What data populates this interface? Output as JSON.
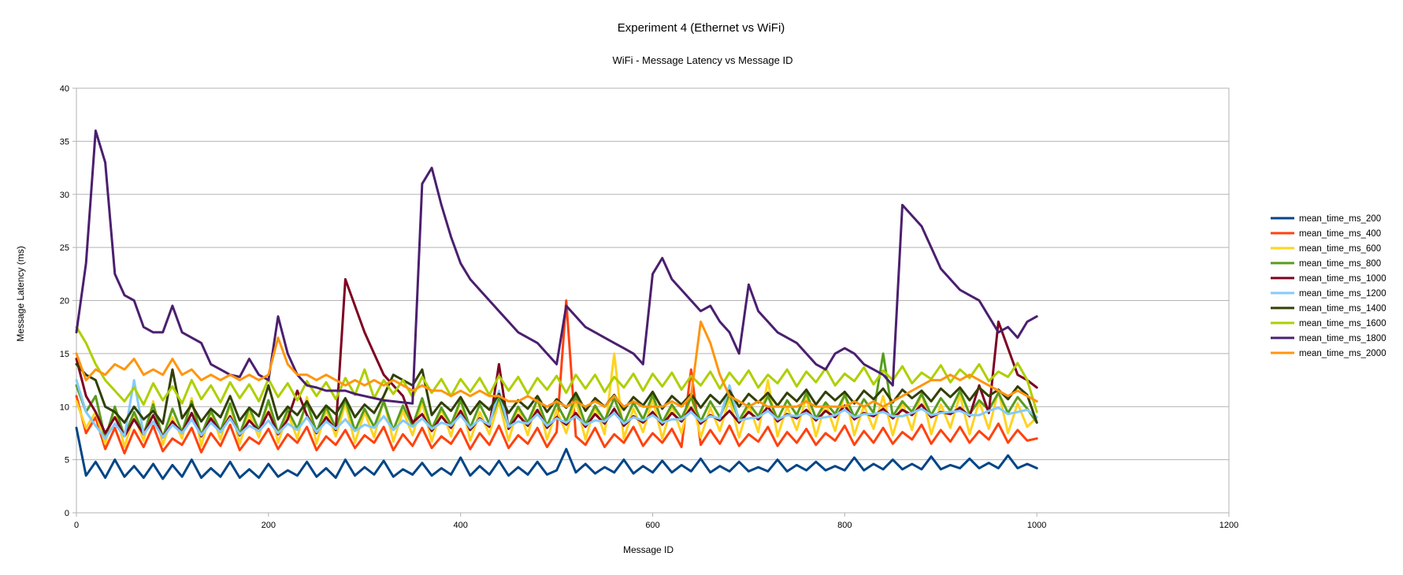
{
  "chart_data": {
    "type": "line",
    "title": "Experiment 4 (Ethernet vs WiFi)",
    "subtitle": "WiFi - Message Latency vs Message ID",
    "xlabel": "Message ID",
    "ylabel": "Message Latency (ms)",
    "xlim": [
      0,
      1200
    ],
    "ylim": [
      0,
      40
    ],
    "xticks": [
      0,
      200,
      400,
      600,
      800,
      1000,
      1200
    ],
    "yticks": [
      0,
      5,
      10,
      15,
      20,
      25,
      30,
      35,
      40
    ],
    "grid": "horizontal",
    "legend_position": "right",
    "x": [
      0,
      10,
      20,
      30,
      40,
      50,
      60,
      70,
      80,
      90,
      100,
      110,
      120,
      130,
      140,
      150,
      160,
      170,
      180,
      190,
      200,
      210,
      220,
      230,
      240,
      250,
      260,
      270,
      280,
      290,
      300,
      310,
      320,
      330,
      340,
      350,
      360,
      370,
      380,
      390,
      400,
      410,
      420,
      430,
      440,
      450,
      460,
      470,
      480,
      490,
      500,
      510,
      520,
      530,
      540,
      550,
      560,
      570,
      580,
      590,
      600,
      610,
      620,
      630,
      640,
      650,
      660,
      670,
      680,
      690,
      700,
      710,
      720,
      730,
      740,
      750,
      760,
      770,
      780,
      790,
      800,
      810,
      820,
      830,
      840,
      850,
      860,
      870,
      880,
      890,
      900,
      910,
      920,
      930,
      940,
      950,
      960,
      970,
      980,
      990,
      1000
    ],
    "series": [
      {
        "name": "mean_time_ms_200",
        "color": "#004586",
        "values": [
          8.0,
          3.5,
          4.8,
          3.3,
          5.0,
          3.4,
          4.4,
          3.3,
          4.6,
          3.2,
          4.5,
          3.4,
          5.0,
          3.3,
          4.2,
          3.4,
          4.8,
          3.3,
          4.1,
          3.3,
          4.6,
          3.4,
          4.0,
          3.5,
          4.8,
          3.4,
          4.2,
          3.3,
          5.0,
          3.5,
          4.3,
          3.6,
          4.9,
          3.4,
          4.1,
          3.6,
          4.7,
          3.5,
          4.2,
          3.6,
          5.2,
          3.5,
          4.4,
          3.6,
          4.9,
          3.5,
          4.3,
          3.6,
          4.8,
          3.6,
          4.0,
          6.0,
          3.8,
          4.6,
          3.7,
          4.3,
          3.8,
          5.0,
          3.7,
          4.4,
          3.8,
          4.9,
          3.8,
          4.5,
          3.9,
          5.1,
          3.8,
          4.4,
          3.9,
          4.8,
          3.9,
          4.3,
          3.9,
          5.0,
          3.9,
          4.5,
          4.0,
          4.8,
          4.0,
          4.4,
          4.0,
          5.2,
          4.0,
          4.6,
          4.1,
          5.0,
          4.1,
          4.6,
          4.1,
          5.3,
          4.1,
          4.5,
          4.2,
          5.1,
          4.2,
          4.7,
          4.2,
          5.4,
          4.2,
          4.6,
          4.2
        ]
      },
      {
        "name": "mean_time_ms_400",
        "color": "#ff420e",
        "values": [
          11.0,
          7.5,
          9.0,
          6.0,
          8.0,
          5.6,
          7.8,
          6.2,
          8.2,
          5.8,
          7.0,
          6.4,
          8.0,
          5.7,
          7.5,
          6.3,
          8.3,
          5.9,
          7.1,
          6.5,
          7.9,
          6.0,
          7.4,
          6.6,
          8.1,
          5.9,
          7.2,
          6.4,
          7.8,
          6.1,
          7.3,
          6.6,
          8.1,
          5.9,
          7.4,
          6.3,
          8.0,
          6.1,
          7.2,
          6.5,
          7.9,
          6.0,
          7.5,
          6.4,
          8.2,
          6.1,
          7.3,
          6.5,
          8.0,
          6.2,
          7.6,
          20.0,
          7.2,
          6.4,
          8.0,
          6.2,
          7.4,
          6.6,
          8.1,
          6.3,
          7.5,
          6.6,
          7.9,
          6.2,
          13.5,
          6.4,
          7.8,
          6.5,
          8.2,
          6.3,
          7.4,
          6.7,
          8.1,
          6.3,
          7.6,
          6.6,
          7.9,
          6.4,
          7.5,
          6.8,
          8.2,
          6.4,
          7.7,
          6.6,
          8.0,
          6.5,
          7.6,
          6.9,
          8.3,
          6.5,
          7.8,
          6.7,
          8.1,
          6.6,
          7.7,
          6.9,
          8.4,
          6.6,
          7.8,
          6.8,
          7.0
        ]
      },
      {
        "name": "mean_time_ms_600",
        "color": "#ffd320",
        "values": [
          10.5,
          8.0,
          9.5,
          6.5,
          10.0,
          6.2,
          9.2,
          6.8,
          10.5,
          6.4,
          9.0,
          7.0,
          10.8,
          6.3,
          9.6,
          6.9,
          10.2,
          6.5,
          9.3,
          7.1,
          10.6,
          6.6,
          9.4,
          7.0,
          10.9,
          6.5,
          9.7,
          7.2,
          10.3,
          6.6,
          9.5,
          7.1,
          10.7,
          6.7,
          9.6,
          7.3,
          10.4,
          6.7,
          9.8,
          7.2,
          10.8,
          6.8,
          9.5,
          7.4,
          10.5,
          6.8,
          9.9,
          7.3,
          10.9,
          6.9,
          9.7,
          7.5,
          10.6,
          6.9,
          10.0,
          7.4,
          15.0,
          7.0,
          9.8,
          7.6,
          10.7,
          7.0,
          10.1,
          7.5,
          11.1,
          7.1,
          9.9,
          7.7,
          10.8,
          7.1,
          10.2,
          7.6,
          12.5,
          7.2,
          10.0,
          7.8,
          10.9,
          7.2,
          10.3,
          7.7,
          11.3,
          7.3,
          10.1,
          7.9,
          11.0,
          7.3,
          10.4,
          7.8,
          11.4,
          7.4,
          10.2,
          8.0,
          11.1,
          7.4,
          10.5,
          7.9,
          11.5,
          7.5,
          10.3,
          8.1,
          9.0
        ]
      },
      {
        "name": "mean_time_ms_800",
        "color": "#579d1c",
        "values": [
          12.0,
          9.5,
          11.0,
          7.0,
          10.0,
          7.2,
          9.5,
          7.4,
          10.2,
          7.1,
          9.8,
          7.6,
          10.5,
          7.3,
          9.6,
          7.7,
          10.3,
          7.4,
          9.9,
          7.8,
          10.6,
          7.5,
          9.7,
          7.9,
          10.4,
          7.6,
          10.0,
          8.0,
          10.7,
          7.7,
          9.8,
          8.1,
          10.5,
          7.8,
          10.1,
          8.2,
          10.8,
          7.9,
          9.9,
          8.3,
          10.6,
          8.0,
          10.2,
          8.4,
          10.9,
          8.1,
          10.0,
          8.5,
          10.7,
          8.2,
          10.3,
          8.6,
          11.0,
          8.3,
          10.1,
          8.7,
          10.8,
          8.4,
          10.4,
          8.8,
          11.1,
          8.5,
          10.2,
          8.9,
          10.9,
          8.6,
          10.5,
          9.0,
          11.2,
          8.7,
          10.3,
          9.1,
          11.0,
          8.8,
          10.6,
          9.2,
          11.3,
          8.9,
          10.4,
          9.3,
          11.1,
          9.0,
          10.7,
          9.4,
          15.0,
          9.1,
          10.5,
          9.5,
          11.2,
          9.2,
          10.8,
          9.6,
          11.5,
          9.3,
          10.6,
          9.7,
          11.3,
          9.4,
          10.9,
          9.8,
          8.5
        ]
      },
      {
        "name": "mean_time_ms_1000",
        "color": "#7e0021",
        "values": [
          14.5,
          11.0,
          9.5,
          7.5,
          9.0,
          7.2,
          8.8,
          7.4,
          9.2,
          7.1,
          8.6,
          7.5,
          9.4,
          7.2,
          8.9,
          7.6,
          9.1,
          7.3,
          8.7,
          7.7,
          9.5,
          7.4,
          8.8,
          11.5,
          9.2,
          7.5,
          9.0,
          7.8,
          22.0,
          19.5,
          17.0,
          15.0,
          13.0,
          12.0,
          11.0,
          8.5,
          9.3,
          7.7,
          9.1,
          8.0,
          9.6,
          7.8,
          8.9,
          8.1,
          14.0,
          7.9,
          9.2,
          8.2,
          9.7,
          8.0,
          9.0,
          8.3,
          9.4,
          8.1,
          9.3,
          8.4,
          9.8,
          8.2,
          9.1,
          8.5,
          9.5,
          8.3,
          9.4,
          8.6,
          9.9,
          8.4,
          9.2,
          8.7,
          9.6,
          8.5,
          9.5,
          8.8,
          10.0,
          8.6,
          9.3,
          8.9,
          9.7,
          8.7,
          9.6,
          9.0,
          10.1,
          8.8,
          9.4,
          9.1,
          9.8,
          8.9,
          9.7,
          9.2,
          10.2,
          9.0,
          9.5,
          9.3,
          9.9,
          9.1,
          12.0,
          9.4,
          18.0,
          15.5,
          13.0,
          12.5,
          11.8
        ]
      },
      {
        "name": "mean_time_ms_1200",
        "color": "#83caff",
        "values": [
          12.5,
          9.5,
          8.2,
          7.0,
          8.4,
          7.2,
          12.5,
          7.4,
          8.6,
          7.1,
          8.3,
          7.5,
          8.8,
          7.3,
          8.5,
          7.6,
          8.9,
          7.4,
          8.2,
          7.7,
          8.7,
          7.5,
          8.4,
          7.8,
          9.0,
          7.6,
          8.6,
          7.9,
          8.8,
          7.7,
          8.3,
          8.0,
          9.1,
          7.8,
          8.7,
          8.1,
          8.9,
          7.9,
          8.5,
          8.2,
          9.2,
          8.0,
          8.8,
          8.3,
          11.5,
          8.1,
          8.6,
          8.4,
          9.3,
          8.2,
          8.9,
          8.5,
          9.1,
          8.3,
          8.7,
          8.6,
          9.4,
          8.4,
          9.0,
          8.7,
          9.2,
          8.5,
          8.8,
          8.8,
          9.5,
          8.6,
          9.1,
          8.9,
          12.0,
          8.7,
          8.9,
          9.0,
          9.6,
          8.8,
          9.2,
          9.1,
          9.4,
          8.9,
          9.0,
          9.2,
          9.7,
          9.0,
          9.3,
          9.3,
          9.5,
          9.1,
          9.1,
          9.4,
          9.8,
          9.2,
          9.4,
          9.5,
          9.6,
          9.2,
          9.2,
          9.6,
          9.9,
          9.3,
          9.5,
          9.7,
          9.0
        ]
      },
      {
        "name": "mean_time_ms_1400",
        "color": "#314004",
        "values": [
          14.0,
          13.0,
          12.5,
          10.0,
          9.5,
          8.5,
          10.0,
          8.8,
          9.6,
          8.4,
          13.5,
          8.9,
          10.2,
          8.6,
          9.8,
          9.0,
          11.0,
          8.7,
          9.9,
          9.1,
          12.0,
          8.8,
          10.0,
          9.2,
          10.5,
          8.9,
          10.1,
          9.3,
          10.8,
          9.0,
          10.2,
          9.4,
          11.0,
          13.0,
          12.5,
          12.0,
          13.5,
          9.2,
          10.4,
          9.6,
          10.9,
          9.3,
          10.5,
          9.7,
          11.2,
          9.4,
          10.6,
          9.8,
          11.0,
          9.5,
          10.7,
          9.9,
          11.3,
          9.6,
          10.8,
          10.0,
          11.1,
          9.7,
          10.9,
          10.1,
          11.4,
          9.8,
          11.0,
          10.2,
          11.2,
          9.9,
          11.1,
          10.3,
          11.5,
          10.0,
          11.2,
          10.4,
          11.3,
          10.1,
          11.3,
          10.5,
          11.6,
          10.2,
          11.4,
          10.6,
          11.4,
          10.3,
          11.5,
          10.7,
          11.7,
          10.4,
          11.6,
          10.8,
          11.5,
          10.5,
          11.7,
          10.9,
          11.8,
          10.6,
          11.8,
          11.0,
          11.6,
          10.7,
          11.9,
          11.1,
          8.5
        ]
      },
      {
        "name": "mean_time_ms_1600",
        "color": "#aecf00",
        "values": [
          17.5,
          16.0,
          14.0,
          12.5,
          11.5,
          10.5,
          11.8,
          10.2,
          12.2,
          10.6,
          11.9,
          10.3,
          12.5,
          10.7,
          12.0,
          10.4,
          12.3,
          10.8,
          12.1,
          10.5,
          12.6,
          10.9,
          12.2,
          10.6,
          12.4,
          11.0,
          12.3,
          10.7,
          12.7,
          11.1,
          13.5,
          10.8,
          12.5,
          11.2,
          12.5,
          10.9,
          12.8,
          11.3,
          12.6,
          11.0,
          12.6,
          11.4,
          12.7,
          11.1,
          12.9,
          11.5,
          12.8,
          11.2,
          12.7,
          11.6,
          12.9,
          11.3,
          13.0,
          11.7,
          13.0,
          11.4,
          12.8,
          11.8,
          13.1,
          11.5,
          13.1,
          11.9,
          13.2,
          11.6,
          12.9,
          12.0,
          13.3,
          11.7,
          13.2,
          12.1,
          13.4,
          11.8,
          13.0,
          12.2,
          13.5,
          11.9,
          13.3,
          12.3,
          13.6,
          12.0,
          13.1,
          12.4,
          13.7,
          12.1,
          13.4,
          12.5,
          13.8,
          12.2,
          13.2,
          12.6,
          13.9,
          12.3,
          13.5,
          12.7,
          14.0,
          12.4,
          13.3,
          12.8,
          14.1,
          12.5,
          9.5
        ]
      },
      {
        "name": "mean_time_ms_1800",
        "color": "#4b1f6f",
        "values": [
          17.0,
          23.5,
          36.0,
          33.0,
          22.5,
          20.5,
          20.0,
          17.5,
          17.0,
          17.0,
          19.5,
          17.0,
          16.5,
          16.0,
          14.0,
          13.5,
          13.0,
          12.8,
          14.5,
          13.0,
          12.5,
          18.5,
          15.0,
          13.0,
          12.0,
          11.8,
          11.5,
          11.5,
          11.5,
          11.2,
          11.0,
          10.8,
          10.6,
          10.5,
          10.4,
          10.3,
          31.0,
          32.5,
          29.0,
          26.0,
          23.5,
          22.0,
          21.0,
          20.0,
          19.0,
          18.0,
          17.0,
          16.5,
          16.0,
          15.0,
          14.0,
          19.5,
          18.5,
          17.5,
          17.0,
          16.5,
          16.0,
          15.5,
          15.0,
          14.0,
          22.5,
          24.0,
          22.0,
          21.0,
          20.0,
          19.0,
          19.5,
          18.0,
          17.0,
          15.0,
          21.5,
          19.0,
          18.0,
          17.0,
          16.5,
          16.0,
          15.0,
          14.0,
          13.5,
          15.0,
          15.5,
          15.0,
          14.0,
          13.5,
          13.0,
          12.0,
          29.0,
          28.0,
          27.0,
          25.0,
          23.0,
          22.0,
          21.0,
          20.5,
          20.0,
          18.5,
          17.0,
          17.5,
          16.5,
          18.0,
          18.5
        ]
      },
      {
        "name": "mean_time_ms_2000",
        "color": "#ff950e",
        "values": [
          15.0,
          12.5,
          13.5,
          13.0,
          14.0,
          13.5,
          14.5,
          13.0,
          13.5,
          13.0,
          14.5,
          13.0,
          13.5,
          12.5,
          13.0,
          12.5,
          13.0,
          12.5,
          13.0,
          12.5,
          13.0,
          16.5,
          14.0,
          13.0,
          13.0,
          12.5,
          13.0,
          12.5,
          12.0,
          12.5,
          12.0,
          12.5,
          12.0,
          12.5,
          12.0,
          11.5,
          12.0,
          11.5,
          11.5,
          11.0,
          11.5,
          11.0,
          11.5,
          11.0,
          11.0,
          10.5,
          10.5,
          11.0,
          10.5,
          10.0,
          10.5,
          10.0,
          10.5,
          10.0,
          10.5,
          10.0,
          11.0,
          10.0,
          10.5,
          10.0,
          10.0,
          10.0,
          10.5,
          10.0,
          11.0,
          18.0,
          16.0,
          13.0,
          11.0,
          10.5,
          10.0,
          10.5,
          10.0,
          10.0,
          10.0,
          10.0,
          10.5,
          10.0,
          10.0,
          10.0,
          10.0,
          10.5,
          10.0,
          10.5,
          10.0,
          10.5,
          11.0,
          11.5,
          12.0,
          12.5,
          12.5,
          13.0,
          12.5,
          13.0,
          12.5,
          12.0,
          11.5,
          11.0,
          11.5,
          11.0,
          10.5
        ]
      }
    ]
  }
}
